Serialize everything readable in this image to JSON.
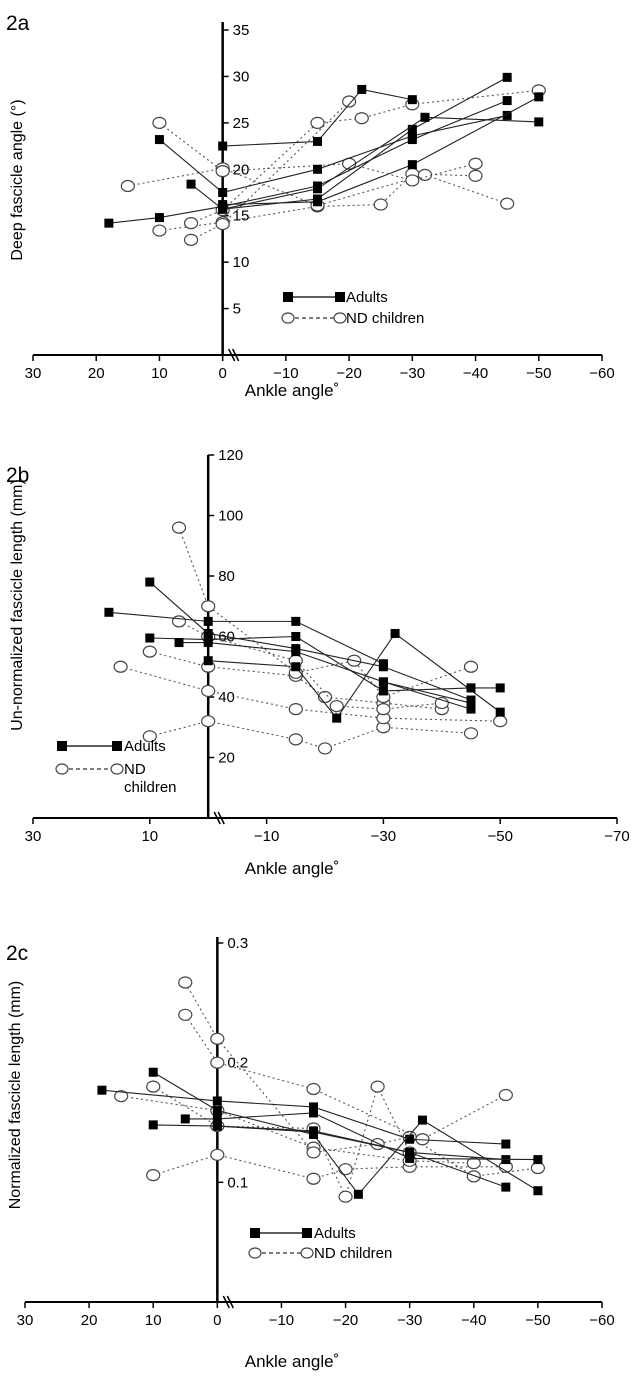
{
  "chart_data": [
    {
      "type": "line",
      "panel_label": "2a",
      "ylabel": "Deep fascicle angle (°)",
      "xlabel": "Ankle angle˚",
      "x_tick_labels": [
        "30",
        "20",
        "10",
        "0",
        "−10",
        "−20",
        "−30",
        "−40",
        "−50",
        "−60"
      ],
      "y_tick_labels": [
        "5",
        "10",
        "15",
        "20",
        "25",
        "30",
        "35"
      ],
      "xlim": [
        30,
        -60
      ],
      "ylim": [
        0,
        35
      ],
      "legend": [
        "Adults",
        "ND children"
      ],
      "series": [
        {
          "group": "Adults",
          "x": [
            18,
            10,
            0,
            -15,
            -30,
            -45
          ],
          "y": [
            14.2,
            14.8,
            16,
            18.2,
            23.2,
            27.4
          ]
        },
        {
          "group": "Adults",
          "x": [
            10,
            0,
            -15,
            -30,
            -45
          ],
          "y": [
            23.2,
            17.5,
            20,
            23.6,
            25.8
          ]
        },
        {
          "group": "Adults",
          "x": [
            5,
            0,
            -15,
            -30,
            -45
          ],
          "y": [
            18.4,
            15.7,
            16.8,
            24.3,
            29.9
          ]
        },
        {
          "group": "Adults",
          "x": [
            0,
            -15,
            -22,
            -30
          ],
          "y": [
            22.5,
            23,
            28.6,
            27.5
          ]
        },
        {
          "group": "Adults",
          "x": [
            0,
            -15,
            -30,
            -50
          ],
          "y": [
            16.2,
            16.5,
            20.5,
            27.8
          ]
        },
        {
          "group": "Adults",
          "x": [
            0,
            -15,
            -32,
            -50
          ],
          "y": [
            15.7,
            17.9,
            25.6,
            25.1
          ]
        },
        {
          "group": "ND children",
          "x": [
            10,
            0,
            -15,
            -25,
            -30,
            -40
          ],
          "y": [
            13.4,
            14.3,
            16,
            16.2,
            19.5,
            19.3
          ]
        },
        {
          "group": "ND children",
          "x": [
            15,
            0,
            -15,
            -32,
            -45
          ],
          "y": [
            18.2,
            20.1,
            16.1,
            19.4,
            16.3
          ]
        },
        {
          "group": "ND children",
          "x": [
            10,
            0,
            -20,
            -30,
            -40
          ],
          "y": [
            25,
            19.8,
            20.6,
            18.8,
            20.6
          ]
        },
        {
          "group": "ND children",
          "x": [
            5,
            0,
            -15,
            -22,
            -30,
            -50
          ],
          "y": [
            14.2,
            15.6,
            25,
            25.5,
            27,
            28.5
          ]
        },
        {
          "group": "ND children",
          "x": [
            5,
            0,
            -20
          ],
          "y": [
            12.4,
            14.1,
            27.3
          ]
        }
      ]
    },
    {
      "type": "line",
      "panel_label": "2b",
      "ylabel": "Un-normalized fascicle length (mm)",
      "xlabel": "Ankle angle˚",
      "x_tick_labels": [
        "30",
        "10",
        "−10",
        "−30",
        "−50",
        "−70"
      ],
      "y_tick_labels": [
        "20",
        "40",
        "60",
        "80",
        "100",
        "120"
      ],
      "xlim": [
        30,
        -70
      ],
      "ylim": [
        0,
        120
      ],
      "legend": [
        "Adults",
        "ND children"
      ],
      "series": [
        {
          "group": "Adults",
          "x": [
            17,
            0,
            -15,
            -30
          ],
          "y": [
            68,
            65,
            65,
            51
          ]
        },
        {
          "group": "Adults",
          "x": [
            10,
            0,
            -15,
            -30,
            -45
          ],
          "y": [
            59.5,
            59,
            60,
            42,
            43
          ]
        },
        {
          "group": "Adults",
          "x": [
            5,
            0,
            -15,
            -30,
            -45
          ],
          "y": [
            58,
            58,
            55,
            45,
            36
          ]
        },
        {
          "group": "Adults",
          "x": [
            10,
            0,
            -15,
            -30,
            -45
          ],
          "y": [
            78,
            61,
            56,
            50,
            39
          ]
        },
        {
          "group": "Adults",
          "x": [
            0,
            -15,
            -22,
            -32,
            -50
          ],
          "y": [
            52,
            50,
            33,
            61,
            35
          ]
        },
        {
          "group": "Adults",
          "x": [
            -30,
            -45
          ],
          "y": [
            45,
            38
          ]
        },
        {
          "group": "Adults",
          "x": [
            -45,
            -50
          ],
          "y": [
            43,
            43
          ]
        },
        {
          "group": "ND children",
          "x": [
            10,
            0,
            -15,
            -20,
            -30,
            -45
          ],
          "y": [
            27,
            32,
            26,
            23,
            30,
            28
          ]
        },
        {
          "group": "ND children",
          "x": [
            15,
            0,
            -15,
            -30,
            -50
          ],
          "y": [
            50,
            42,
            36,
            33,
            32
          ]
        },
        {
          "group": "ND children",
          "x": [
            10,
            0,
            -15,
            -20,
            -30,
            -40
          ],
          "y": [
            55,
            50,
            47,
            40,
            38,
            36
          ]
        },
        {
          "group": "ND children",
          "x": [
            5,
            0,
            -15,
            -25,
            -30,
            -45
          ],
          "y": [
            96,
            70,
            48,
            52,
            40,
            50
          ]
        },
        {
          "group": "ND children",
          "x": [
            5,
            0,
            -15,
            -22,
            -30,
            -40
          ],
          "y": [
            65,
            60,
            52,
            37,
            36,
            38
          ]
        }
      ]
    },
    {
      "type": "line",
      "panel_label": "2c",
      "ylabel": "Normalized fascicle length (mm)",
      "xlabel": "Ankle angle˚",
      "x_tick_labels": [
        "30",
        "20",
        "10",
        "0",
        "−10",
        "−20",
        "−30",
        "−40",
        "−50",
        "−60"
      ],
      "y_tick_labels": [
        "0.1",
        "0.2",
        "0.3"
      ],
      "xlim": [
        30,
        -60
      ],
      "ylim": [
        0,
        0.3
      ],
      "legend": [
        "Adults",
        "ND children"
      ],
      "series": [
        {
          "group": "Adults",
          "x": [
            18,
            0,
            -15,
            -30,
            -45
          ],
          "y": [
            0.177,
            0.168,
            0.163,
            0.136,
            0.132
          ]
        },
        {
          "group": "Adults",
          "x": [
            10,
            0,
            -15,
            -30,
            -45
          ],
          "y": [
            0.148,
            0.147,
            0.143,
            0.125,
            0.119
          ]
        },
        {
          "group": "Adults",
          "x": [
            5,
            0,
            -15,
            -30,
            -50
          ],
          "y": [
            0.153,
            0.153,
            0.158,
            0.12,
            0.119
          ]
        },
        {
          "group": "Adults",
          "x": [
            10,
            0,
            -15,
            -22,
            -32,
            -50
          ],
          "y": [
            0.192,
            0.16,
            0.14,
            0.09,
            0.152,
            0.093
          ]
        },
        {
          "group": "Adults",
          "x": [
            0,
            -15,
            -30,
            -45
          ],
          "y": [
            0.147,
            0.142,
            0.125,
            0.096
          ]
        },
        {
          "group": "ND children",
          "x": [
            10,
            0,
            -15,
            -20,
            -30,
            -45
          ],
          "y": [
            0.106,
            0.123,
            0.103,
            0.111,
            0.113,
            0.113
          ]
        },
        {
          "group": "ND children",
          "x": [
            15,
            0,
            -15,
            -30,
            -40
          ],
          "y": [
            0.172,
            0.16,
            0.129,
            0.118,
            0.116
          ]
        },
        {
          "group": "ND children",
          "x": [
            10,
            0,
            -15,
            -20,
            -25,
            -30
          ],
          "y": [
            0.18,
            0.147,
            0.145,
            0.088,
            0.18,
            0.125
          ]
        },
        {
          "group": "ND children",
          "x": [
            5,
            0,
            -15,
            -25,
            -30,
            -40,
            -50
          ],
          "y": [
            0.267,
            0.22,
            0.125,
            0.132,
            0.138,
            0.105,
            0.112
          ]
        },
        {
          "group": "ND children",
          "x": [
            5,
            0,
            -15,
            -32,
            -45
          ],
          "y": [
            0.24,
            0.2,
            0.178,
            0.136,
            0.173
          ]
        }
      ]
    }
  ]
}
